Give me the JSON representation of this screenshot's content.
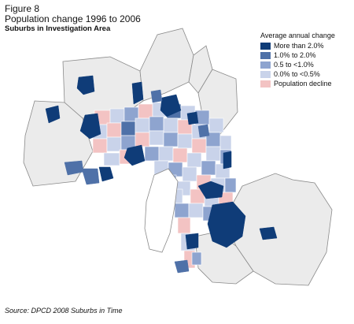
{
  "figure": {
    "label": "Figure 8",
    "title": "Population change 1996 to 2006",
    "subtitle": "Suburbs in Investigation Area"
  },
  "legend": {
    "title": "Average annual change",
    "items": [
      {
        "label": "More than 2.0%",
        "color": "#0f3c78"
      },
      {
        "label": "1.0% to 2.0%",
        "color": "#4f71a8"
      },
      {
        "label": "0.5 to <1.0%",
        "color": "#8ea4cf"
      },
      {
        "label": "0.0% to <0.5%",
        "color": "#c9d3ea"
      },
      {
        "label": "Population decline",
        "color": "#f3c3c3"
      }
    ]
  },
  "colors": {
    "outer_region": "#ebebeb",
    "boundary": "#8a8a8a"
  },
  "source": "Source: DPCD 2008 Suburbs in Time"
}
